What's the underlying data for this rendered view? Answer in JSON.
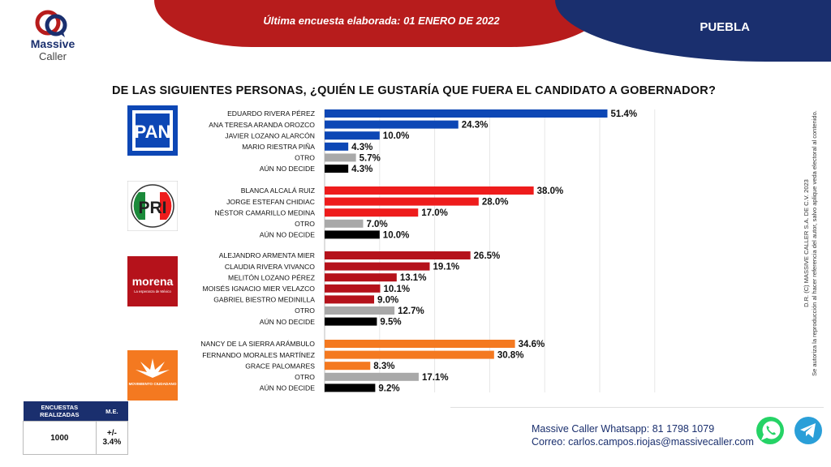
{
  "header": {
    "brand_line1": "Massive",
    "brand_line2": "Caller",
    "survey_date": "Última encuesta elaborada: 01  ENERO  DE 2022",
    "region": "PUEBLA"
  },
  "question": "DE LAS SIGUIENTES PERSONAS, ¿QUIÉN LE GUSTARÍA QUE FUERA EL CANDIDATO  A GOBERNADOR?",
  "copyright_note_line1": "D.R. (C) MASSIVE CALLER S.A. DE C.V. 2023",
  "copyright_note_line2": "Se autoriza la reproducción al hacer referencia del autor, salvo aplique veda electoral al contenido.",
  "parties": {
    "pan": {
      "logo_text": "PAN"
    },
    "pri": {
      "logo_text": "PRI"
    },
    "morena": {
      "logo_text": "morena",
      "logo_subtext": "La esperanza de México"
    },
    "mc": {
      "logo_text": "MOVIMIENTO CIUDADANO"
    }
  },
  "colors": {
    "pan": "#0d47b5",
    "pri": "#ee1c1c",
    "morena": "#b5121b",
    "mc": "#f47920",
    "otro": "#a9a9a9",
    "no_decide": "#000000"
  },
  "chart_data": {
    "type": "bar",
    "orientation": "horizontal",
    "unit": "%",
    "xlim": [
      0,
      60
    ],
    "grid": true,
    "groups": [
      {
        "party": "PAN",
        "bars": [
          {
            "label": "EDUARDO RIVERA PÉREZ",
            "value": 51.4,
            "display": "51.4%",
            "color": "#0d47b5"
          },
          {
            "label": "ANA TERESA ARANDA OROZCO",
            "value": 24.3,
            "display": "24.3%",
            "color": "#0d47b5"
          },
          {
            "label": "JAVIER LOZANO ALARCÓN",
            "value": 10.0,
            "display": "10.0%",
            "color": "#0d47b5"
          },
          {
            "label": "MARIO RIESTRA PIÑA",
            "value": 4.3,
            "display": "4.3%",
            "color": "#0d47b5"
          },
          {
            "label": "OTRO",
            "value": 5.7,
            "display": "5.7%",
            "color": "#a9a9a9"
          },
          {
            "label": "AÚN NO DECIDE",
            "value": 4.3,
            "display": "4.3%",
            "color": "#000000"
          }
        ]
      },
      {
        "party": "PRI",
        "bars": [
          {
            "label": "BLANCA ALCALÁ RUIZ",
            "value": 38.0,
            "display": "38.0%",
            "color": "#ee1c1c"
          },
          {
            "label": "JORGE ESTEFAN CHIDIAC",
            "value": 28.0,
            "display": "28.0%",
            "color": "#ee1c1c"
          },
          {
            "label": "NÉSTOR CAMARILLO MEDINA",
            "value": 17.0,
            "display": "17.0%",
            "color": "#ee1c1c"
          },
          {
            "label": "OTRO",
            "value": 7.0,
            "display": "7.0%",
            "color": "#a9a9a9"
          },
          {
            "label": "AÚN NO DECIDE",
            "value": 10.0,
            "display": "10.0%",
            "color": "#000000"
          }
        ]
      },
      {
        "party": "MORENA",
        "bars": [
          {
            "label": "ALEJANDRO ARMENTA MIER",
            "value": 26.5,
            "display": "26.5%",
            "color": "#b5121b"
          },
          {
            "label": "CLAUDIA RIVERA VIVANCO",
            "value": 19.1,
            "display": "19.1%",
            "color": "#b5121b"
          },
          {
            "label": "MELITÓN LOZANO PÉREZ",
            "value": 13.1,
            "display": "13.1%",
            "color": "#b5121b"
          },
          {
            "label": "MOISÉS IGNACIO MIER VELAZCO",
            "value": 10.1,
            "display": "10.1%",
            "color": "#b5121b"
          },
          {
            "label": "GABRIEL BIESTRO MEDINILLA",
            "value": 9.0,
            "display": "9.0%",
            "color": "#b5121b"
          },
          {
            "label": "OTRO",
            "value": 12.7,
            "display": "12.7%",
            "color": "#a9a9a9"
          },
          {
            "label": "AÚN NO DECIDE",
            "value": 9.5,
            "display": "9.5%",
            "color": "#000000"
          }
        ]
      },
      {
        "party": "MC",
        "bars": [
          {
            "label": "NANCY DE LA SIERRA ARÁMBULO",
            "value": 34.6,
            "display": "34.6%",
            "color": "#f47920"
          },
          {
            "label": "FERNANDO MORALES MARTÍNEZ",
            "value": 30.8,
            "display": "30.8%",
            "color": "#f47920"
          },
          {
            "label": "GRACE PALOMARES",
            "value": 8.3,
            "display": "8.3%",
            "color": "#f47920"
          },
          {
            "label": "OTRO",
            "value": 17.1,
            "display": "17.1%",
            "color": "#a9a9a9"
          },
          {
            "label": "AÚN NO DECIDE",
            "value": 9.2,
            "display": "9.2%",
            "color": "#000000"
          }
        ]
      }
    ]
  },
  "stats": {
    "col1_header": "ENCUESTAS REALIZADAS",
    "col2_header": "M.E.",
    "col1_value": "1000",
    "col2_value": "+/- 3.4%"
  },
  "contact": {
    "whatsapp_label": "Massive Caller Whatsapp:",
    "whatsapp_value": "81 1798 1079",
    "email_label": "Correo:",
    "email_value": "carlos.campos.riojas@massivecaller.com"
  },
  "icons": {
    "whatsapp": "whatsapp-icon",
    "telegram": "telegram-icon"
  }
}
